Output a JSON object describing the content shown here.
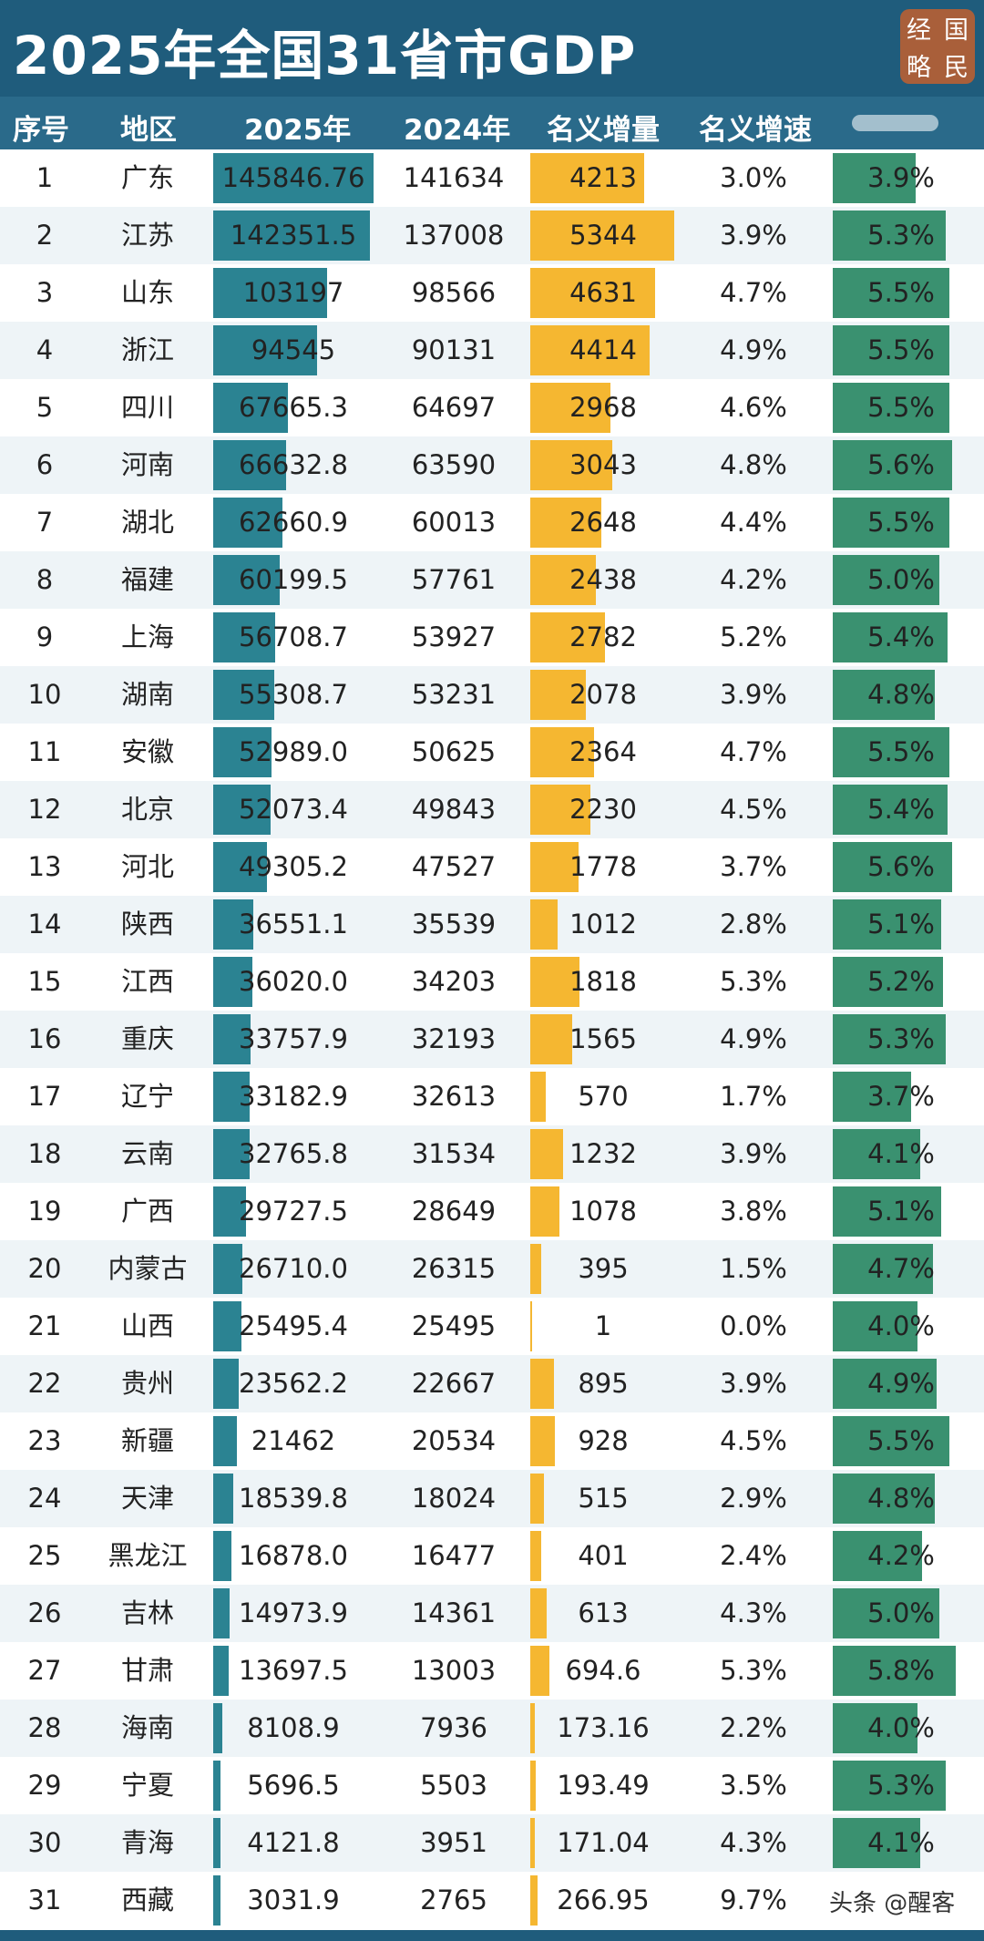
{
  "header": {
    "title": "2025年全国31省市GDP"
  },
  "logo": {
    "chars": [
      "经",
      "国",
      "略",
      "民"
    ]
  },
  "columns": {
    "rank": "序号",
    "region": "地区",
    "gdp2025": "2025年",
    "gdp2024": "2024年",
    "nominal_increase": "名义增量",
    "nominal_growth": "名义增速"
  },
  "credit": "头条 @醒客",
  "colors": {
    "header": "#1f5c7c",
    "gdp_bar": "#2b8392",
    "increase_bar": "#f5b731",
    "growth_bar": "#3a9170"
  },
  "chart_data": {
    "type": "table",
    "title": "2025年全国31省市GDP",
    "rows": [
      {
        "rank": "1",
        "region": "广东",
        "gdp2025": "145846.76",
        "gdp2024": "141634",
        "increase": "4213",
        "nominal": "3.0%",
        "forecast": "3.9%"
      },
      {
        "rank": "2",
        "region": "江苏",
        "gdp2025": "142351.5",
        "gdp2024": "137008",
        "increase": "5344",
        "nominal": "3.9%",
        "forecast": "5.3%"
      },
      {
        "rank": "3",
        "region": "山东",
        "gdp2025": "103197",
        "gdp2024": "98566",
        "increase": "4631",
        "nominal": "4.7%",
        "forecast": "5.5%"
      },
      {
        "rank": "4",
        "region": "浙江",
        "gdp2025": "94545",
        "gdp2024": "90131",
        "increase": "4414",
        "nominal": "4.9%",
        "forecast": "5.5%"
      },
      {
        "rank": "5",
        "region": "四川",
        "gdp2025": "67665.3",
        "gdp2024": "64697",
        "increase": "2968",
        "nominal": "4.6%",
        "forecast": "5.5%"
      },
      {
        "rank": "6",
        "region": "河南",
        "gdp2025": "66632.8",
        "gdp2024": "63590",
        "increase": "3043",
        "nominal": "4.8%",
        "forecast": "5.6%"
      },
      {
        "rank": "7",
        "region": "湖北",
        "gdp2025": "62660.9",
        "gdp2024": "60013",
        "increase": "2648",
        "nominal": "4.4%",
        "forecast": "5.5%"
      },
      {
        "rank": "8",
        "region": "福建",
        "gdp2025": "60199.5",
        "gdp2024": "57761",
        "increase": "2438",
        "nominal": "4.2%",
        "forecast": "5.0%"
      },
      {
        "rank": "9",
        "region": "上海",
        "gdp2025": "56708.7",
        "gdp2024": "53927",
        "increase": "2782",
        "nominal": "5.2%",
        "forecast": "5.4%"
      },
      {
        "rank": "10",
        "region": "湖南",
        "gdp2025": "55308.7",
        "gdp2024": "53231",
        "increase": "2078",
        "nominal": "3.9%",
        "forecast": "4.8%"
      },
      {
        "rank": "11",
        "region": "安徽",
        "gdp2025": "52989.0",
        "gdp2024": "50625",
        "increase": "2364",
        "nominal": "4.7%",
        "forecast": "5.5%"
      },
      {
        "rank": "12",
        "region": "北京",
        "gdp2025": "52073.4",
        "gdp2024": "49843",
        "increase": "2230",
        "nominal": "4.5%",
        "forecast": "5.4%"
      },
      {
        "rank": "13",
        "region": "河北",
        "gdp2025": "49305.2",
        "gdp2024": "47527",
        "increase": "1778",
        "nominal": "3.7%",
        "forecast": "5.6%"
      },
      {
        "rank": "14",
        "region": "陕西",
        "gdp2025": "36551.1",
        "gdp2024": "35539",
        "increase": "1012",
        "nominal": "2.8%",
        "forecast": "5.1%"
      },
      {
        "rank": "15",
        "region": "江西",
        "gdp2025": "36020.0",
        "gdp2024": "34203",
        "increase": "1818",
        "nominal": "5.3%",
        "forecast": "5.2%"
      },
      {
        "rank": "16",
        "region": "重庆",
        "gdp2025": "33757.9",
        "gdp2024": "32193",
        "increase": "1565",
        "nominal": "4.9%",
        "forecast": "5.3%"
      },
      {
        "rank": "17",
        "region": "辽宁",
        "gdp2025": "33182.9",
        "gdp2024": "32613",
        "increase": "570",
        "nominal": "1.7%",
        "forecast": "3.7%"
      },
      {
        "rank": "18",
        "region": "云南",
        "gdp2025": "32765.8",
        "gdp2024": "31534",
        "increase": "1232",
        "nominal": "3.9%",
        "forecast": "4.1%"
      },
      {
        "rank": "19",
        "region": "广西",
        "gdp2025": "29727.5",
        "gdp2024": "28649",
        "increase": "1078",
        "nominal": "3.8%",
        "forecast": "5.1%"
      },
      {
        "rank": "20",
        "region": "内蒙古",
        "gdp2025": "26710.0",
        "gdp2024": "26315",
        "increase": "395",
        "nominal": "1.5%",
        "forecast": "4.7%"
      },
      {
        "rank": "21",
        "region": "山西",
        "gdp2025": "25495.4",
        "gdp2024": "25495",
        "increase": "1",
        "nominal": "0.0%",
        "forecast": "4.0%"
      },
      {
        "rank": "22",
        "region": "贵州",
        "gdp2025": "23562.2",
        "gdp2024": "22667",
        "increase": "895",
        "nominal": "3.9%",
        "forecast": "4.9%"
      },
      {
        "rank": "23",
        "region": "新疆",
        "gdp2025": "21462",
        "gdp2024": "20534",
        "increase": "928",
        "nominal": "4.5%",
        "forecast": "5.5%"
      },
      {
        "rank": "24",
        "region": "天津",
        "gdp2025": "18539.8",
        "gdp2024": "18024",
        "increase": "515",
        "nominal": "2.9%",
        "forecast": "4.8%"
      },
      {
        "rank": "25",
        "region": "黑龙江",
        "gdp2025": "16878.0",
        "gdp2024": "16477",
        "increase": "401",
        "nominal": "2.4%",
        "forecast": "4.2%"
      },
      {
        "rank": "26",
        "region": "吉林",
        "gdp2025": "14973.9",
        "gdp2024": "14361",
        "increase": "613",
        "nominal": "4.3%",
        "forecast": "5.0%"
      },
      {
        "rank": "27",
        "region": "甘肃",
        "gdp2025": "13697.5",
        "gdp2024": "13003",
        "increase": "694.6",
        "nominal": "5.3%",
        "forecast": "5.8%"
      },
      {
        "rank": "28",
        "region": "海南",
        "gdp2025": "8108.9",
        "gdp2024": "7936",
        "increase": "173.16",
        "nominal": "2.2%",
        "forecast": "4.0%"
      },
      {
        "rank": "29",
        "region": "宁夏",
        "gdp2025": "5696.5",
        "gdp2024": "5503",
        "increase": "193.49",
        "nominal": "3.5%",
        "forecast": "5.3%"
      },
      {
        "rank": "30",
        "region": "青海",
        "gdp2025": "4121.8",
        "gdp2024": "3951",
        "increase": "171.04",
        "nominal": "4.3%",
        "forecast": "4.1%"
      },
      {
        "rank": "31",
        "region": "西藏",
        "gdp2025": "3031.9",
        "gdp2024": "2765",
        "increase": "266.95",
        "nominal": "9.7%",
        "forecast": ""
      }
    ]
  }
}
